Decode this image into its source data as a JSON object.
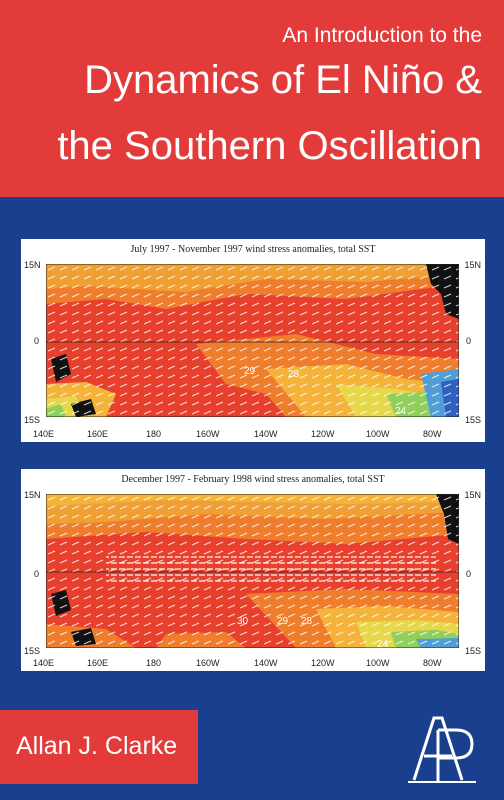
{
  "cover": {
    "title_line1": "An Introduction to the",
    "title_line2": "Dynamics of El Niño &",
    "title_line3": "the Southern Oscillation",
    "author": "Allan J. Clarke",
    "publisher_logo": "AP"
  },
  "colors": {
    "red": "#e23b3a",
    "blue": "#1b3f8f",
    "white": "#ffffff"
  },
  "panels": [
    {
      "title": "July 1997 - November 1997 wind stress anomalies, total SST",
      "lat_labels": [
        "15N",
        "0",
        "15S"
      ],
      "lon_labels": [
        "140E",
        "160E",
        "180",
        "160W",
        "140W",
        "120W",
        "100W",
        "80W"
      ],
      "contour_labels": [
        "29",
        "28",
        "24"
      ]
    },
    {
      "title": "December 1997 - February 1998 wind stress anomalies, total SST",
      "lat_labels": [
        "15N",
        "0",
        "15S"
      ],
      "lon_labels": [
        "140E",
        "160E",
        "180",
        "160W",
        "140W",
        "120W",
        "100W",
        "80W"
      ],
      "contour_labels": [
        "30",
        "29",
        "28",
        "24"
      ]
    }
  ]
}
